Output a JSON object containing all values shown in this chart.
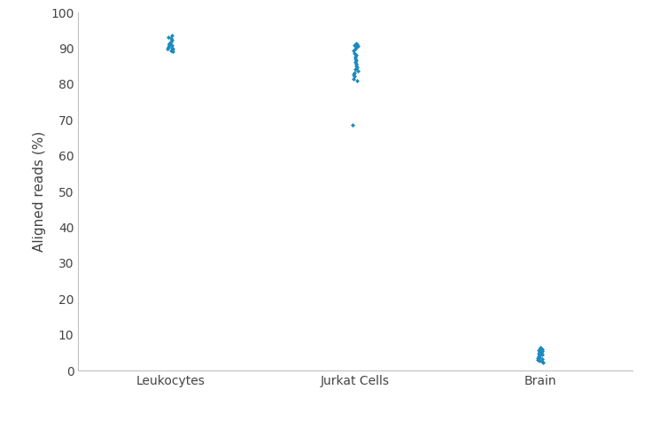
{
  "categories": [
    "Leukocytes",
    "Jurkat Cells",
    "Brain"
  ],
  "leukocytes_values": [
    93.5,
    93.2,
    92.8,
    92.3,
    91.9,
    91.5,
    91.2,
    91.0,
    90.8,
    90.5,
    90.2,
    90.0,
    89.8,
    89.5,
    89.2
  ],
  "jurkat_values": [
    91.5,
    91.2,
    91.0,
    90.7,
    90.3,
    89.8,
    89.3,
    88.7,
    88.2,
    87.8,
    87.3,
    86.8,
    86.2,
    85.7,
    85.2,
    84.7,
    84.2,
    83.7,
    83.2,
    82.7,
    82.2,
    81.5,
    81.0,
    68.5
  ],
  "brain_values": [
    6.5,
    6.2,
    5.9,
    5.6,
    5.4,
    5.2,
    4.9,
    4.7,
    4.5,
    4.2,
    4.0,
    3.8,
    3.5,
    3.2,
    3.0,
    2.8,
    2.5,
    2.2
  ],
  "color": "#1a8abf",
  "ylabel": "Aligned reads (%)",
  "ylim": [
    0,
    100
  ],
  "yticks": [
    0,
    10,
    20,
    30,
    40,
    50,
    60,
    70,
    80,
    90,
    100
  ],
  "marker": "D",
  "marker_size": 2.5,
  "bg_color": "#ffffff",
  "spine_color": "#c0c0c0",
  "figsize": [
    7.36,
    4.75
  ],
  "dpi": 100
}
